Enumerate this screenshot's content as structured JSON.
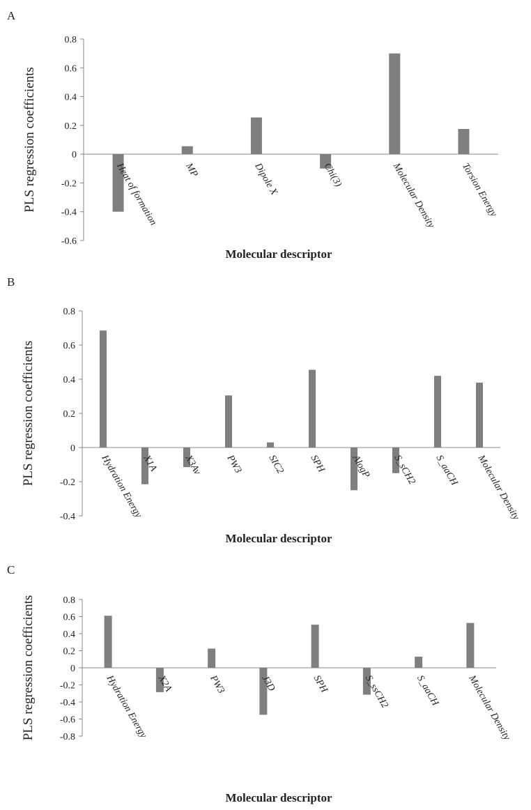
{
  "chart_data": [
    {
      "panel_label": "A",
      "type": "bar",
      "categories": [
        "Heat of formation",
        "MP",
        "Dipole X",
        "Chi(3)",
        "Molecular Density",
        "Torsion Energy"
      ],
      "values": [
        -0.4,
        0.055,
        0.255,
        -0.1,
        0.7,
        0.175
      ],
      "ylabel": "PLS regression coefficients",
      "xlabel": "Molecular descriptor",
      "ylim": [
        -0.6,
        0.8
      ],
      "yticks": [
        "0.8",
        "0.6",
        "0.4",
        "0.2",
        "0",
        "-0.2",
        "-0.4",
        "-0.6"
      ],
      "bar_color": "#7f7f7f",
      "grid": false
    },
    {
      "panel_label": "B",
      "type": "bar",
      "categories": [
        "Hydration Energy",
        "X1A",
        "X3Av",
        "PW3",
        "SIC2",
        "SPH",
        "AlogP",
        "S_sCH2",
        "S_aaCH",
        "Molecular Density"
      ],
      "values": [
        0.685,
        -0.215,
        -0.115,
        0.305,
        0.03,
        0.455,
        -0.25,
        -0.15,
        0.42,
        0.38
      ],
      "ylabel": "PLS regression coefficients",
      "xlabel": "Molecular descriptor",
      "ylim": [
        -0.4,
        0.8
      ],
      "yticks": [
        "0.8",
        "0.6",
        "0.4",
        "0.2",
        "0",
        "-0.2",
        "-0.4"
      ],
      "bar_color": "#7f7f7f",
      "grid": false
    },
    {
      "panel_label": "C",
      "type": "bar",
      "categories": [
        "Hydration Energy",
        "X2A",
        "PW3",
        "J3D",
        "SPH",
        "S_ssCH2",
        "S_aaCH",
        "Molecular Density"
      ],
      "values": [
        0.61,
        -0.285,
        0.225,
        -0.55,
        0.505,
        -0.315,
        0.13,
        0.525
      ],
      "ylabel": "PLS regression coefficients",
      "xlabel": "Molecular descriptor",
      "ylim": [
        -0.8,
        0.8
      ],
      "yticks": [
        "0.8",
        "0.6",
        "0.4",
        "0.2",
        "0",
        "-0.2",
        "-0.4",
        "-0.6",
        "-0.8"
      ],
      "bar_color": "#7f7f7f",
      "grid": false
    }
  ]
}
